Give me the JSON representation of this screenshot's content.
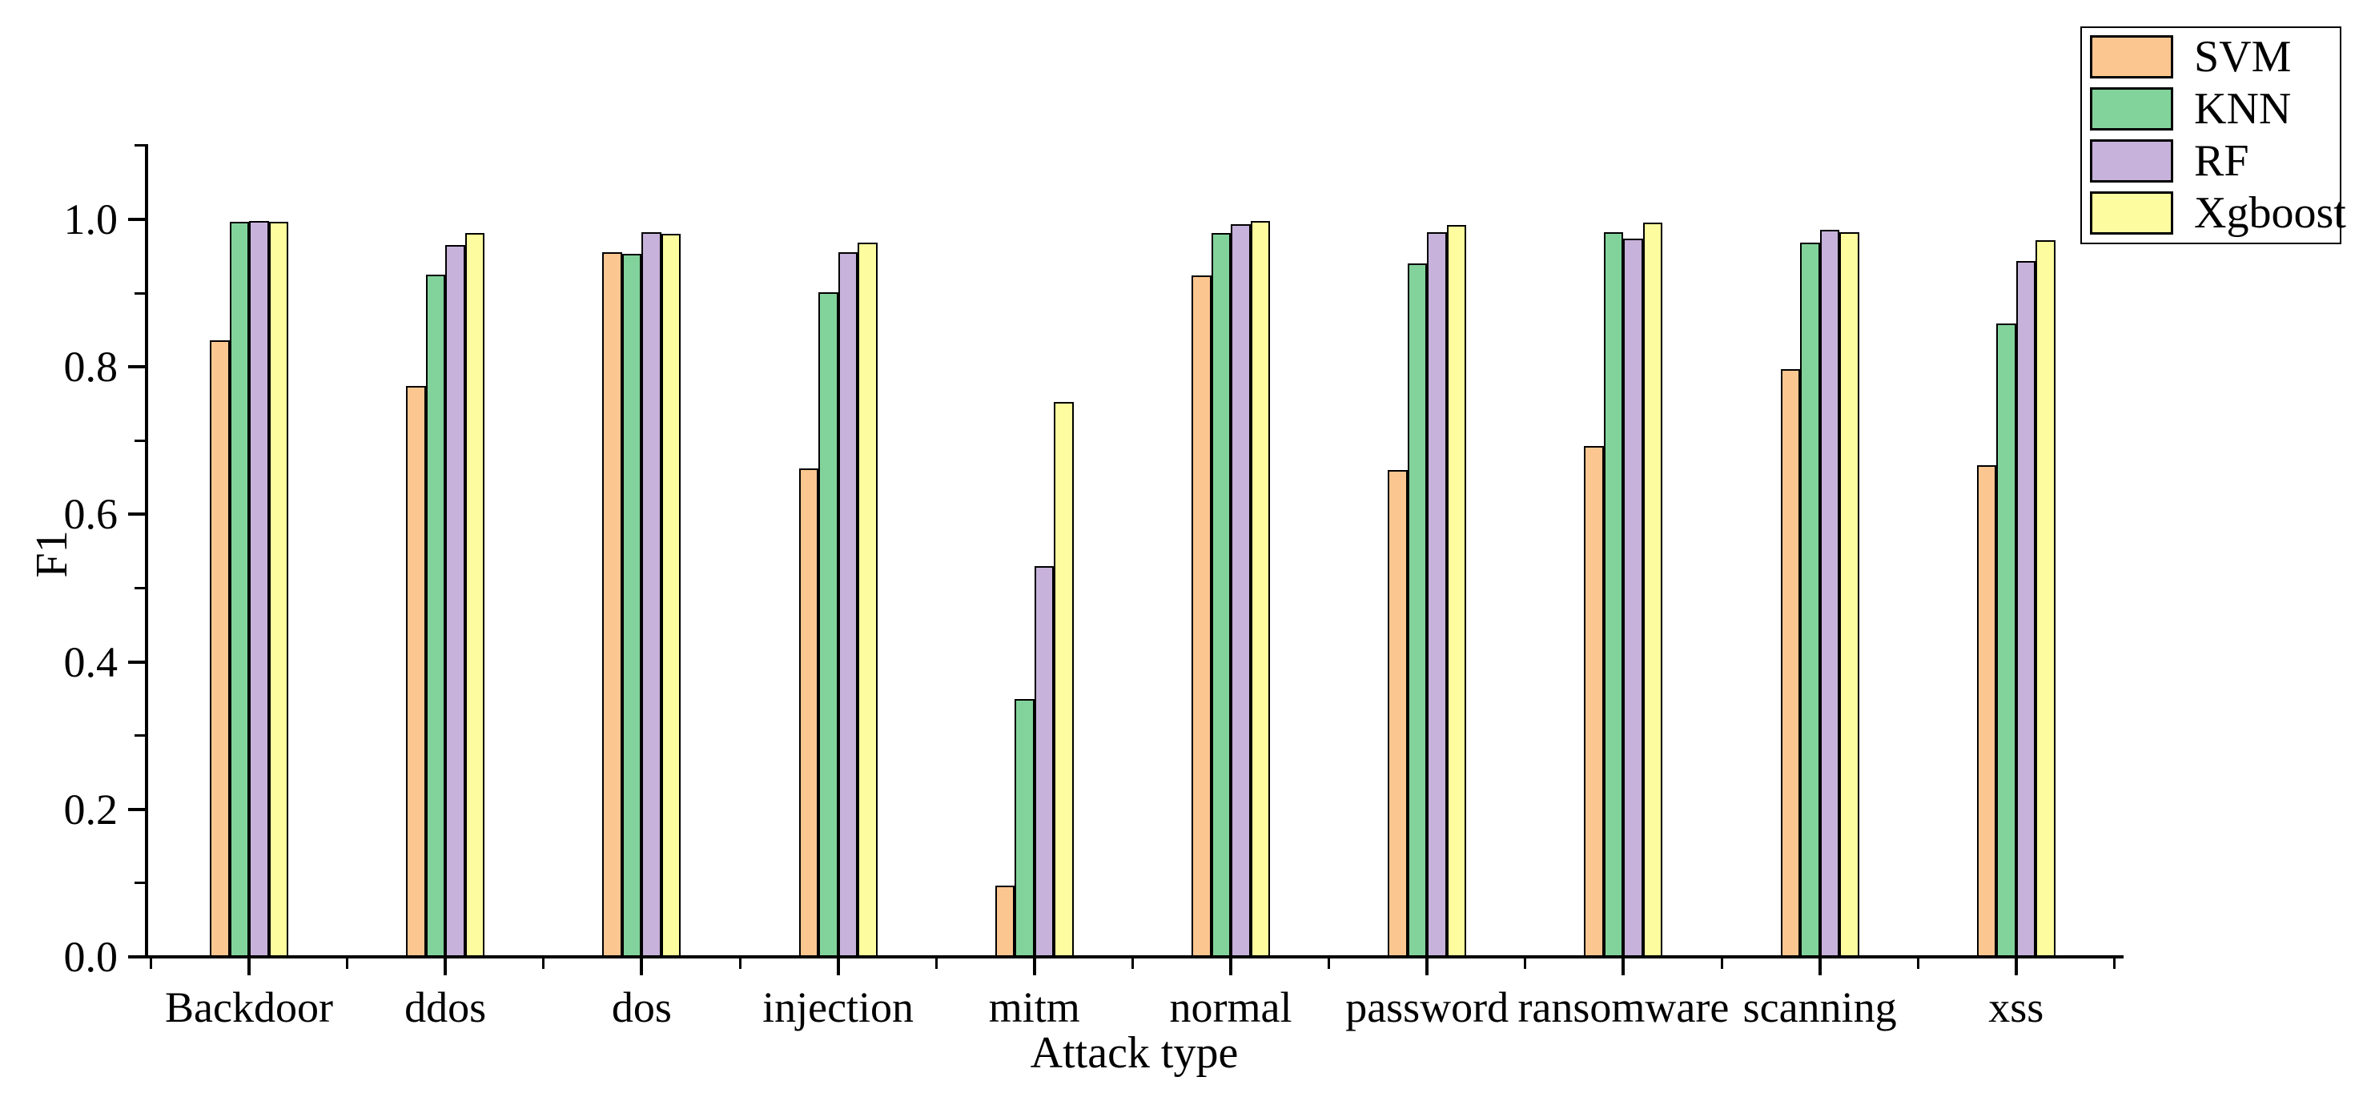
{
  "axes": {
    "y_label": "F1",
    "x_label": "Attack type"
  },
  "chart_data": {
    "type": "bar",
    "title": "",
    "xlabel": "Attack type",
    "ylabel": "F1",
    "ylim": [
      0,
      1.1
    ],
    "yticks_major": [
      0.0,
      0.2,
      0.4,
      0.6,
      0.8,
      1.0
    ],
    "yticks_minor": [
      0.1,
      0.3,
      0.5,
      0.7,
      0.9,
      1.1
    ],
    "ytick_labels": [
      "0.0",
      "0.2",
      "0.4",
      "0.6",
      "0.8",
      "1.0"
    ],
    "grid": false,
    "legend_position": "top-right",
    "bar_edge_color": "#000000",
    "categories": [
      "Backdoor",
      "ddos",
      "dos",
      "injection",
      "mitm",
      "normal",
      "password",
      "ransomware",
      "scanning",
      "xss"
    ],
    "series": [
      {
        "name": "SVM",
        "color": "#FCC690",
        "values": [
          0.836,
          0.774,
          0.955,
          0.662,
          0.097,
          0.924,
          0.66,
          0.693,
          0.797,
          0.667
        ]
      },
      {
        "name": "KNN",
        "color": "#82D39B",
        "values": [
          0.997,
          0.925,
          0.953,
          0.901,
          0.35,
          0.981,
          0.94,
          0.983,
          0.969,
          0.859
        ]
      },
      {
        "name": "RF",
        "color": "#C7B2DB",
        "values": [
          0.998,
          0.965,
          0.983,
          0.955,
          0.53,
          0.993,
          0.983,
          0.974,
          0.986,
          0.943
        ]
      },
      {
        "name": "Xgboost",
        "color": "#FDFD9F",
        "values": [
          0.997,
          0.982,
          0.98,
          0.969,
          0.752,
          0.998,
          0.992,
          0.996,
          0.983,
          0.972
        ]
      }
    ]
  }
}
